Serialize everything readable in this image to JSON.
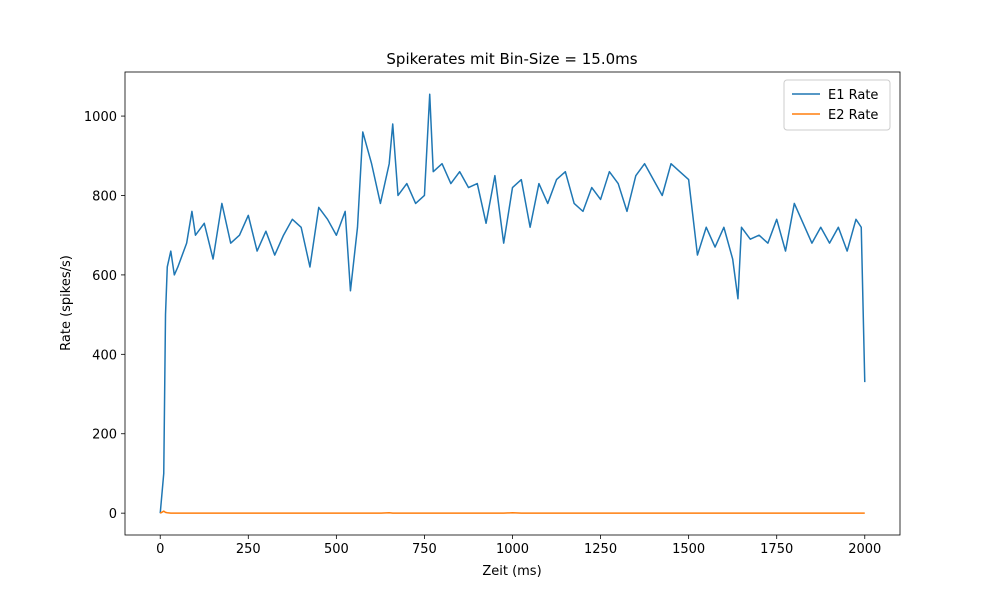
{
  "chart_data": {
    "type": "line",
    "title": "Spikerates mit Bin-Size = 15.0ms",
    "x_label": "Zeit (ms)",
    "y_label": "Rate (spikes/s)",
    "x": [
      0,
      10,
      15,
      20,
      30,
      40,
      50,
      75,
      90,
      100,
      125,
      150,
      175,
      200,
      225,
      250,
      275,
      300,
      325,
      350,
      375,
      400,
      425,
      450,
      475,
      500,
      525,
      540,
      560,
      575,
      600,
      625,
      650,
      660,
      675,
      700,
      725,
      750,
      765,
      775,
      800,
      825,
      850,
      875,
      900,
      925,
      950,
      975,
      1000,
      1025,
      1050,
      1075,
      1100,
      1125,
      1150,
      1175,
      1200,
      1225,
      1250,
      1275,
      1300,
      1325,
      1350,
      1375,
      1400,
      1425,
      1450,
      1475,
      1500,
      1525,
      1550,
      1575,
      1600,
      1625,
      1640,
      1650,
      1675,
      1700,
      1725,
      1750,
      1775,
      1800,
      1825,
      1850,
      1875,
      1900,
      1925,
      1950,
      1975,
      1990,
      2000
    ],
    "series": [
      {
        "name": "E1 Rate",
        "color": "#1f77b4",
        "values": [
          0,
          100,
          500,
          620,
          660,
          600,
          620,
          680,
          760,
          700,
          730,
          640,
          780,
          680,
          700,
          750,
          660,
          710,
          650,
          700,
          740,
          720,
          620,
          770,
          740,
          700,
          760,
          560,
          720,
          960,
          880,
          780,
          880,
          980,
          800,
          830,
          780,
          800,
          1055,
          860,
          880,
          830,
          860,
          820,
          830,
          730,
          850,
          680,
          820,
          840,
          720,
          830,
          780,
          840,
          860,
          780,
          760,
          820,
          790,
          860,
          830,
          760,
          850,
          880,
          840,
          800,
          880,
          860,
          840,
          650,
          720,
          670,
          720,
          640,
          540,
          720,
          690,
          700,
          680,
          740,
          660,
          780,
          730,
          680,
          720,
          680,
          720,
          660,
          740,
          720,
          330
        ]
      },
      {
        "name": "E2 Rate",
        "color": "#ff7f0e",
        "values": [
          0,
          5,
          2,
          1,
          0,
          0,
          0,
          0,
          0,
          0,
          0,
          0,
          0,
          0,
          0,
          0,
          0,
          0,
          0,
          0,
          0,
          0,
          0,
          0,
          0,
          0,
          0,
          0,
          0,
          0,
          0,
          0,
          1,
          0,
          0,
          0,
          0,
          0,
          0,
          0,
          0,
          0,
          0,
          0,
          0,
          0,
          0,
          0,
          1,
          0,
          0,
          0,
          0,
          0,
          0,
          0,
          0,
          0,
          0,
          0,
          0,
          0,
          0,
          0,
          0,
          0,
          0,
          0,
          0,
          0,
          0,
          0,
          0,
          0,
          0,
          0,
          0,
          0,
          0,
          0,
          0,
          0,
          0,
          0,
          0,
          0,
          0,
          0,
          0,
          0,
          0
        ]
      }
    ],
    "xlim": [
      -100,
      2100
    ],
    "ylim": [
      -55,
      1111
    ],
    "xticks": [
      0,
      250,
      500,
      750,
      1000,
      1250,
      1500,
      1750,
      2000
    ],
    "yticks": [
      0,
      200,
      400,
      600,
      800,
      1000
    ],
    "legend": "upper right"
  }
}
